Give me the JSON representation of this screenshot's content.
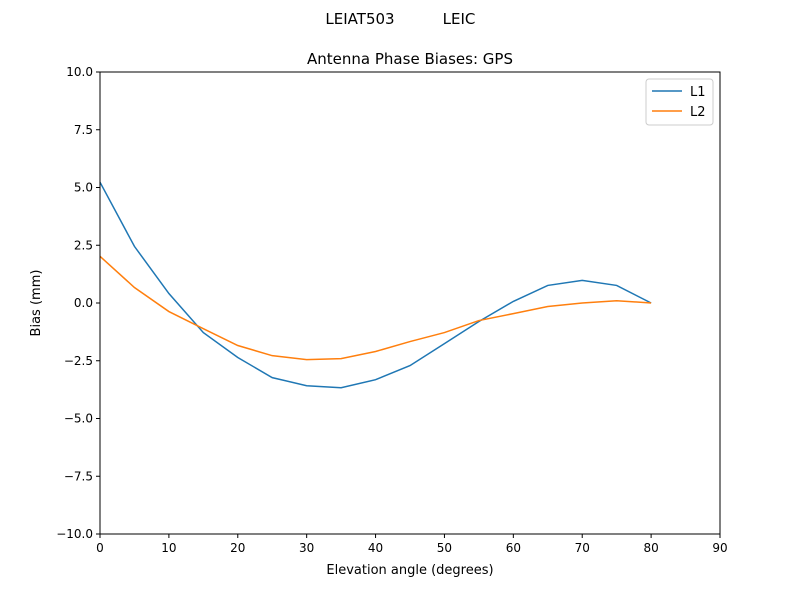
{
  "chart_data": {
    "type": "line",
    "suptitle_left": "LEIAT503",
    "suptitle_right": "LEIC",
    "title": "Antenna Phase Biases: GPS",
    "xlabel": "Elevation angle (degrees)",
    "ylabel": "Bias (mm)",
    "xlim": [
      0,
      90
    ],
    "ylim": [
      -10,
      10
    ],
    "xticks": [
      0,
      10,
      20,
      30,
      40,
      50,
      60,
      70,
      80,
      90
    ],
    "yticks": [
      -10.0,
      -7.5,
      -5.0,
      -2.5,
      0.0,
      2.5,
      5.0,
      7.5,
      10.0
    ],
    "xtick_labels": [
      "0",
      "10",
      "20",
      "30",
      "40",
      "50",
      "60",
      "70",
      "80",
      "90"
    ],
    "ytick_labels": [
      "−10.0",
      "−7.5",
      "−5.0",
      "−2.5",
      "0.0",
      "2.5",
      "5.0",
      "7.5",
      "10.0"
    ],
    "grid": false,
    "legend_position": "top-right",
    "x": [
      0,
      5,
      10,
      15,
      20,
      25,
      30,
      35,
      40,
      45,
      50,
      55,
      60,
      65,
      70,
      75,
      80
    ],
    "series": [
      {
        "name": "L1",
        "color": "#1f77b4",
        "values": [
          5.23,
          2.45,
          0.41,
          -1.28,
          -2.36,
          -3.23,
          -3.58,
          -3.67,
          -3.32,
          -2.71,
          -1.76,
          -0.8,
          0.07,
          0.76,
          0.98,
          0.76,
          0.0
        ]
      },
      {
        "name": "L2",
        "color": "#ff7f0e",
        "values": [
          2.02,
          0.67,
          -0.37,
          -1.11,
          -1.84,
          -2.28,
          -2.45,
          -2.41,
          -2.1,
          -1.67,
          -1.28,
          -0.76,
          -0.46,
          -0.15,
          0.0,
          0.1,
          0.0
        ]
      }
    ]
  }
}
